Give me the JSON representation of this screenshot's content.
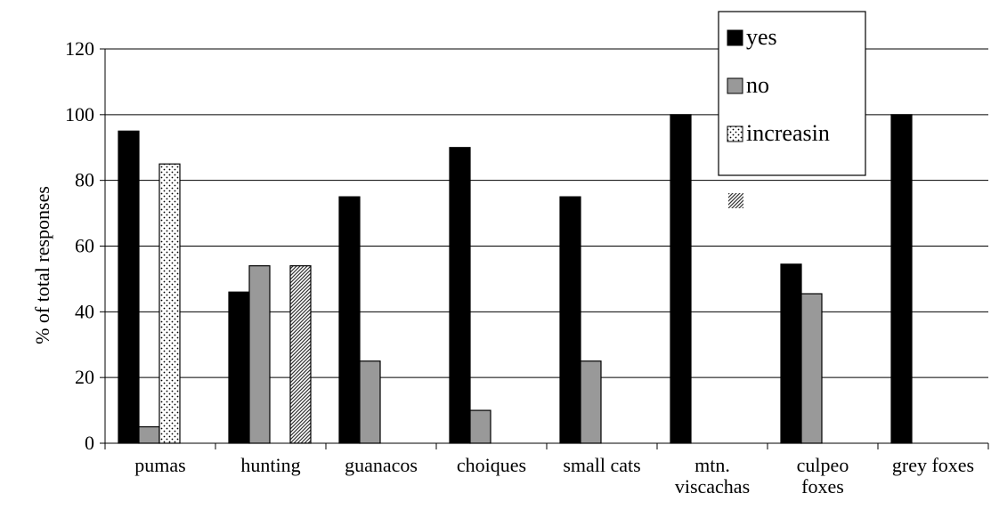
{
  "chart_data": {
    "type": "bar",
    "title": "",
    "xlabel": "",
    "ylabel": "% of total responses",
    "ylim": [
      0,
      120
    ],
    "yticks": [
      0,
      20,
      40,
      60,
      80,
      100,
      120
    ],
    "grid": true,
    "legend_position": "top-right",
    "categories": [
      [
        "pumas"
      ],
      [
        "hunting"
      ],
      [
        "guanacos"
      ],
      [
        "choiques"
      ],
      [
        "small cats"
      ],
      [
        "mtn.",
        "viscachas"
      ],
      [
        "culpeo",
        "foxes"
      ],
      [
        "grey foxes"
      ]
    ],
    "series": [
      {
        "name": "yes",
        "color": "#000000",
        "pattern": "solid",
        "values": [
          95,
          46,
          75,
          90,
          75,
          100,
          54.5,
          100
        ]
      },
      {
        "name": "no",
        "color": "#999999",
        "pattern": "solid",
        "values": [
          5,
          54,
          25,
          10,
          25,
          0,
          45.5,
          0
        ]
      },
      {
        "name": "increasin",
        "color": "#ffffff",
        "pattern": "dots",
        "values": [
          85,
          null,
          null,
          null,
          null,
          null,
          null,
          null
        ]
      },
      {
        "name": "",
        "color": "#ffffff",
        "pattern": "diagonal-hatch",
        "values": [
          null,
          54,
          null,
          null,
          null,
          null,
          null,
          null
        ]
      }
    ]
  }
}
